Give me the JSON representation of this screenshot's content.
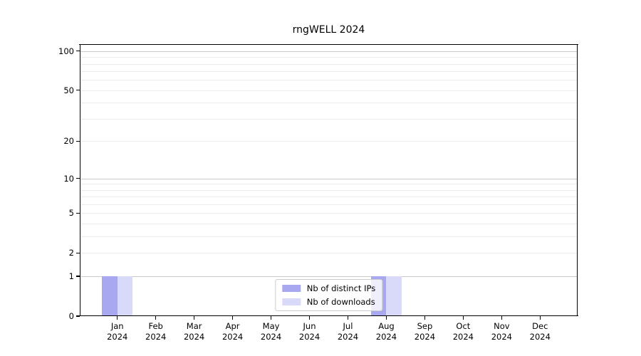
{
  "chart_data": {
    "type": "bar",
    "title": "rngWELL 2024",
    "x_tick_labels": [
      {
        "month": "Jan",
        "year": "2024"
      },
      {
        "month": "Feb",
        "year": "2024"
      },
      {
        "month": "Mar",
        "year": "2024"
      },
      {
        "month": "Apr",
        "year": "2024"
      },
      {
        "month": "May",
        "year": "2024"
      },
      {
        "month": "Jun",
        "year": "2024"
      },
      {
        "month": "Jul",
        "year": "2024"
      },
      {
        "month": "Aug",
        "year": "2024"
      },
      {
        "month": "Sep",
        "year": "2024"
      },
      {
        "month": "Oct",
        "year": "2024"
      },
      {
        "month": "Nov",
        "year": "2024"
      },
      {
        "month": "Dec",
        "year": "2024"
      }
    ],
    "series": [
      {
        "name": "Nb of distinct IPs",
        "color": "#a8a8f0",
        "values": [
          1,
          0,
          0,
          0,
          0,
          0,
          0,
          1,
          0,
          0,
          0,
          0
        ]
      },
      {
        "name": "Nb of downloads",
        "color": "#d9d9fa",
        "values": [
          1,
          0,
          0,
          0,
          0,
          0,
          0,
          1,
          0,
          0,
          0,
          0
        ]
      }
    ],
    "yscale": "log1p",
    "ylim": [
      0,
      113
    ],
    "yticks": [
      0,
      1,
      2,
      5,
      10,
      20,
      50,
      100
    ],
    "grid": {
      "on": true,
      "major_values": [
        1,
        10,
        100
      ],
      "minor_values": [
        2,
        3,
        4,
        5,
        6,
        7,
        8,
        9,
        20,
        30,
        40,
        50,
        60,
        70,
        80,
        90
      ],
      "major_color": "#c8c8c8",
      "minor_color": "#ececec"
    },
    "legend_position": "lower center",
    "layout": {
      "x_margin_frac": 0.0754,
      "bar_width_frac": 0.4
    }
  }
}
